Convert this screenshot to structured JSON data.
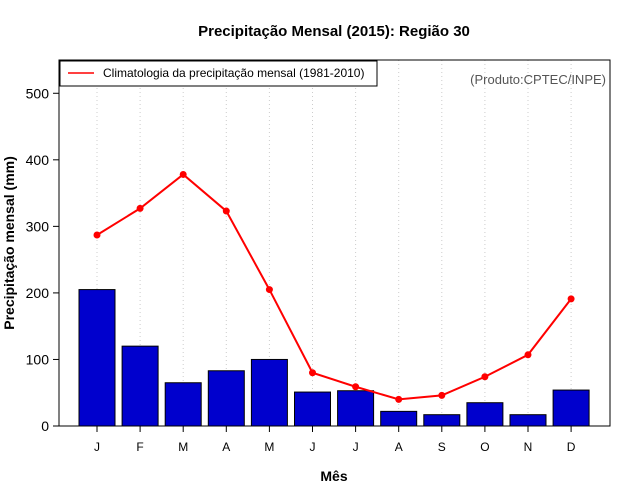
{
  "chart_data": {
    "type": "bar",
    "title": "Precipitação Mensal (2015): Região 30",
    "xlabel": "Mês",
    "ylabel": "Precipitação mensal (mm)",
    "ylim": [
      0,
      550
    ],
    "yticks": [
      0,
      100,
      200,
      300,
      400,
      500
    ],
    "categories": [
      "J",
      "F",
      "M",
      "A",
      "M",
      "J",
      "J",
      "A",
      "S",
      "O",
      "N",
      "D"
    ],
    "series": [
      {
        "name": "Precipitação mensal 2015",
        "type": "bar",
        "color": "#0000cd",
        "values": [
          205,
          120,
          65,
          83,
          100,
          51,
          53,
          22,
          17,
          35,
          17,
          54
        ]
      },
      {
        "name": "Climatologia da precipitação mensal (1981-2010)",
        "type": "line",
        "color": "#ff0000",
        "values": [
          287,
          327,
          378,
          323,
          205,
          80,
          59,
          40,
          46,
          74,
          107,
          191
        ]
      }
    ],
    "legend": {
      "position": "top-left",
      "entries": [
        "Climatologia da precipitação mensal (1981-2010)"
      ]
    },
    "annotation": "(Produto:CPTEC/INPE)",
    "grid": "vertical dotted"
  }
}
